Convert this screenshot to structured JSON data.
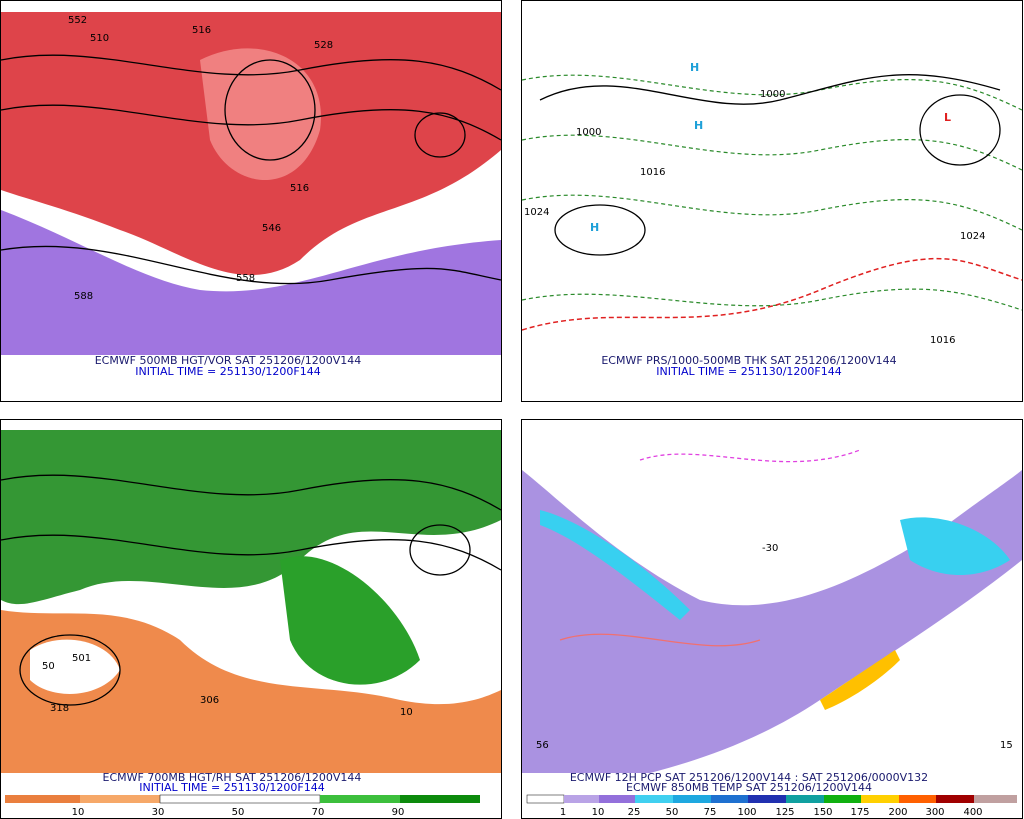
{
  "panels": [
    {
      "title": "ECMWF 500MB HGT/VOR SAT 251206/1200V144",
      "subtitle": "INITIAL TIME = 251130/1200F144",
      "map_labels": [
        "552",
        "510",
        "516",
        "528",
        "588",
        "558",
        "516",
        "546"
      ]
    },
    {
      "title": "ECMWF PRS/1000-500MB THK SAT 251206/1200V144",
      "subtitle": "INITIAL TIME = 251130/1200F144",
      "map_labels": [
        "H",
        "H",
        "H",
        "1000",
        "1016",
        "1024",
        "1000",
        "1024",
        "1016",
        "L"
      ]
    },
    {
      "title": "ECMWF 700MB HGT/RH SAT 251206/1200V144",
      "subtitle": "INITIAL TIME = 251130/1200F144",
      "map_labels": [
        "501",
        "318",
        "306",
        "50",
        "10"
      ],
      "colorbar": [
        10,
        30,
        50,
        70,
        90
      ]
    },
    {
      "title": "ECMWF 12H PCP SAT 251206/1200V144 : SAT 251206/0000V132",
      "subtitle": "ECMWF 850MB TEMP SAT 251206/1200V144",
      "map_labels": [
        "56",
        "15",
        "-30"
      ],
      "colorbar": [
        1,
        10,
        25,
        50,
        75,
        100,
        125,
        150,
        175,
        200,
        300,
        400
      ]
    }
  ]
}
